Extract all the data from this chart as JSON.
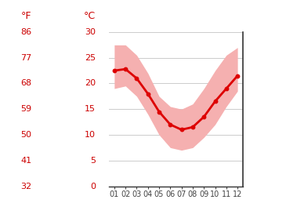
{
  "months": [
    1,
    2,
    3,
    4,
    5,
    6,
    7,
    8,
    9,
    10,
    11,
    12
  ],
  "month_labels": [
    "01",
    "02",
    "03",
    "04",
    "05",
    "06",
    "07",
    "08",
    "09",
    "10",
    "11",
    "12"
  ],
  "mean_temp": [
    22.5,
    22.8,
    21.0,
    18.0,
    14.5,
    12.0,
    11.0,
    11.5,
    13.5,
    16.5,
    19.0,
    21.5
  ],
  "temp_max": [
    27.5,
    27.5,
    25.5,
    22.0,
    17.5,
    15.5,
    15.0,
    16.0,
    19.0,
    22.5,
    25.5,
    27.0
  ],
  "temp_min": [
    19.0,
    19.5,
    17.5,
    14.0,
    10.0,
    7.5,
    7.0,
    7.5,
    9.5,
    12.0,
    15.5,
    18.5
  ],
  "ylim": [
    0,
    30
  ],
  "yticks": [
    0,
    5,
    10,
    15,
    20,
    25,
    30
  ],
  "yticks_f": [
    32,
    41,
    50,
    59,
    68,
    77,
    86
  ],
  "line_color": "#dd0000",
  "fill_color": "#f5b0b0",
  "grid_color": "#cccccc",
  "text_color": "#cc0000",
  "bg_color": "#ffffff",
  "fahrenheit_label": "°F",
  "celsius_label": "°C"
}
